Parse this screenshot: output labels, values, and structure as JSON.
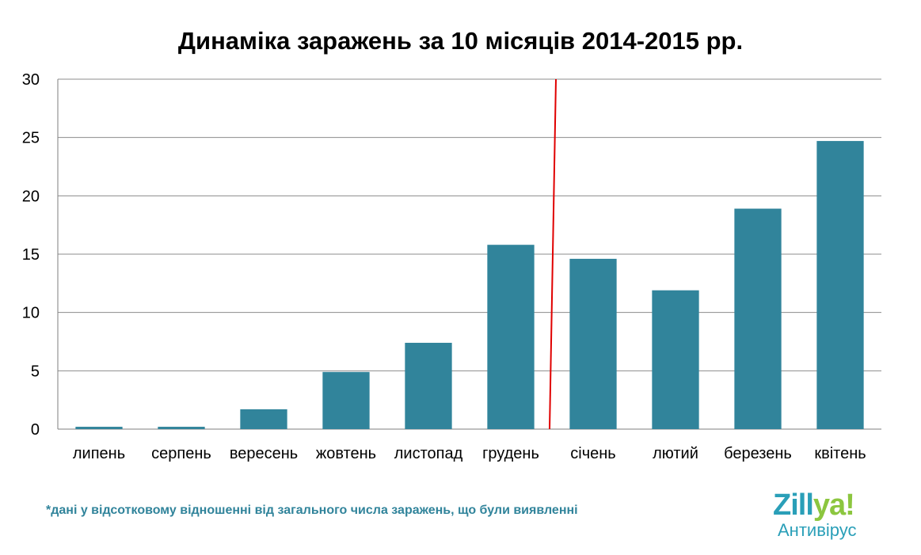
{
  "chart_data": {
    "type": "bar",
    "title": "Динаміка заражень за 10 місяців 2014-2015 рр.",
    "categories": [
      "липень",
      "серпень",
      "вересень",
      "жовтень",
      "листопад",
      "грудень",
      "січень",
      "лютий",
      "березень",
      "квітень"
    ],
    "values": [
      0.2,
      0.2,
      1.7,
      4.9,
      7.4,
      15.8,
      14.6,
      11.9,
      18.9,
      24.7
    ],
    "ylim": [
      0,
      30
    ],
    "yticks": [
      0,
      5,
      10,
      15,
      20,
      25,
      30
    ],
    "grid": true,
    "bar_color": "#31849b",
    "separator_color": "#e00000",
    "separator_between": [
      "грудень",
      "січень"
    ]
  },
  "footnote": "*дані у відсотковому відношенні від загального числа заражень, що були виявленні",
  "logo": {
    "word_part1": "Zill",
    "word_part2": "ya!",
    "subtitle": "Антивірус",
    "colors": [
      "#2a9fb8",
      "#8cc63f"
    ]
  }
}
